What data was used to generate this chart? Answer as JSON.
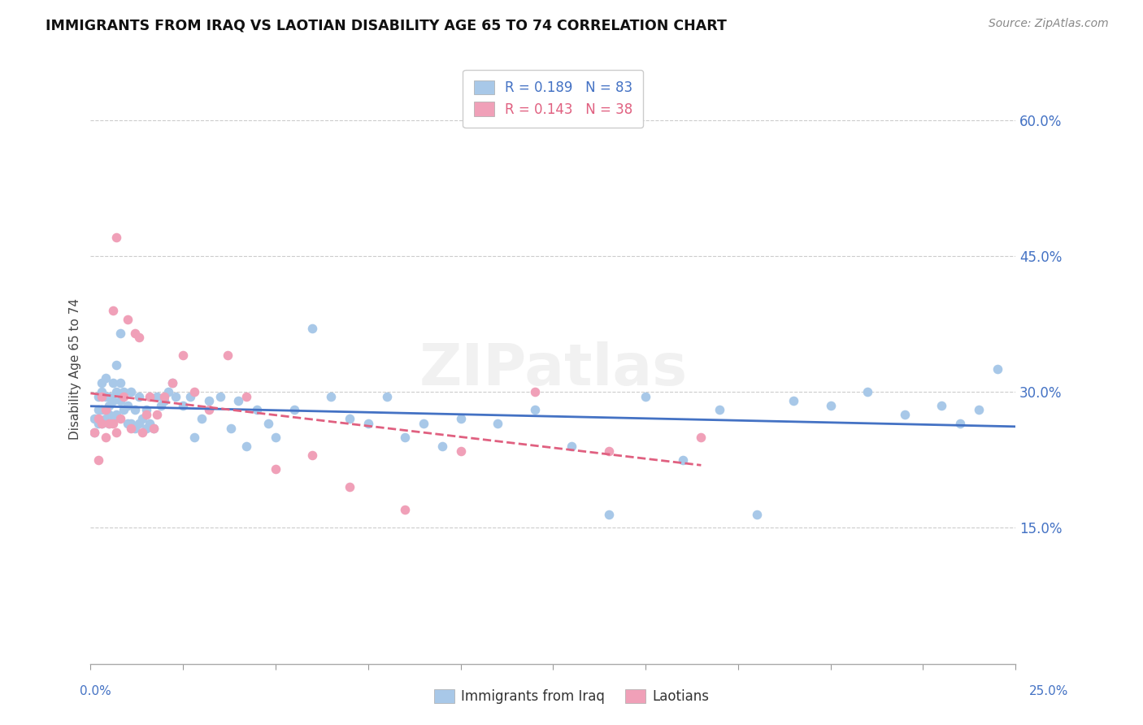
{
  "title": "IMMIGRANTS FROM IRAQ VS LAOTIAN DISABILITY AGE 65 TO 74 CORRELATION CHART",
  "source": "Source: ZipAtlas.com",
  "ylabel": "Disability Age 65 to 74",
  "xmin": 0.0,
  "xmax": 0.25,
  "ymin": 0.0,
  "ymax": 0.65,
  "legend_label1": "Immigrants from Iraq",
  "legend_label2": "Laotians",
  "blue_color": "#a8c8e8",
  "pink_color": "#f0a0b8",
  "blue_line_color": "#4472c4",
  "pink_line_color": "#e06080",
  "axis_label_color": "#4472c4",
  "watermark": "ZIPatlas",
  "iraq_x": [
    0.001,
    0.001,
    0.002,
    0.002,
    0.002,
    0.003,
    0.003,
    0.003,
    0.003,
    0.004,
    0.004,
    0.004,
    0.005,
    0.005,
    0.005,
    0.005,
    0.006,
    0.006,
    0.006,
    0.007,
    0.007,
    0.007,
    0.008,
    0.008,
    0.008,
    0.009,
    0.009,
    0.01,
    0.01,
    0.011,
    0.011,
    0.012,
    0.012,
    0.013,
    0.013,
    0.014,
    0.015,
    0.015,
    0.016,
    0.017,
    0.018,
    0.019,
    0.02,
    0.021,
    0.022,
    0.023,
    0.025,
    0.027,
    0.028,
    0.03,
    0.032,
    0.035,
    0.038,
    0.04,
    0.042,
    0.045,
    0.048,
    0.05,
    0.055,
    0.06,
    0.065,
    0.07,
    0.075,
    0.08,
    0.085,
    0.09,
    0.095,
    0.1,
    0.11,
    0.12,
    0.13,
    0.14,
    0.15,
    0.16,
    0.17,
    0.18,
    0.19,
    0.2,
    0.21,
    0.22,
    0.23,
    0.235,
    0.24,
    0.245
  ],
  "iraq_y": [
    0.255,
    0.27,
    0.28,
    0.295,
    0.265,
    0.28,
    0.3,
    0.265,
    0.31,
    0.27,
    0.295,
    0.315,
    0.275,
    0.265,
    0.295,
    0.285,
    0.27,
    0.31,
    0.29,
    0.275,
    0.3,
    0.33,
    0.365,
    0.31,
    0.29,
    0.28,
    0.3,
    0.265,
    0.285,
    0.3,
    0.265,
    0.28,
    0.26,
    0.295,
    0.265,
    0.27,
    0.28,
    0.26,
    0.265,
    0.26,
    0.295,
    0.285,
    0.29,
    0.3,
    0.31,
    0.295,
    0.285,
    0.295,
    0.25,
    0.27,
    0.29,
    0.295,
    0.26,
    0.29,
    0.24,
    0.28,
    0.265,
    0.25,
    0.28,
    0.37,
    0.295,
    0.27,
    0.265,
    0.295,
    0.25,
    0.265,
    0.24,
    0.27,
    0.265,
    0.28,
    0.24,
    0.165,
    0.295,
    0.225,
    0.28,
    0.165,
    0.29,
    0.285,
    0.3,
    0.275,
    0.285,
    0.265,
    0.28,
    0.325
  ],
  "laotian_x": [
    0.001,
    0.002,
    0.002,
    0.003,
    0.003,
    0.004,
    0.004,
    0.005,
    0.006,
    0.006,
    0.007,
    0.007,
    0.008,
    0.009,
    0.01,
    0.011,
    0.012,
    0.013,
    0.014,
    0.015,
    0.016,
    0.017,
    0.018,
    0.02,
    0.022,
    0.025,
    0.028,
    0.032,
    0.037,
    0.042,
    0.05,
    0.06,
    0.07,
    0.085,
    0.1,
    0.12,
    0.14,
    0.165
  ],
  "laotian_y": [
    0.255,
    0.27,
    0.225,
    0.265,
    0.295,
    0.25,
    0.28,
    0.265,
    0.265,
    0.39,
    0.255,
    0.47,
    0.27,
    0.295,
    0.38,
    0.26,
    0.365,
    0.36,
    0.255,
    0.275,
    0.295,
    0.26,
    0.275,
    0.295,
    0.31,
    0.34,
    0.3,
    0.28,
    0.34,
    0.295,
    0.215,
    0.23,
    0.195,
    0.17,
    0.235,
    0.3,
    0.235,
    0.25
  ]
}
